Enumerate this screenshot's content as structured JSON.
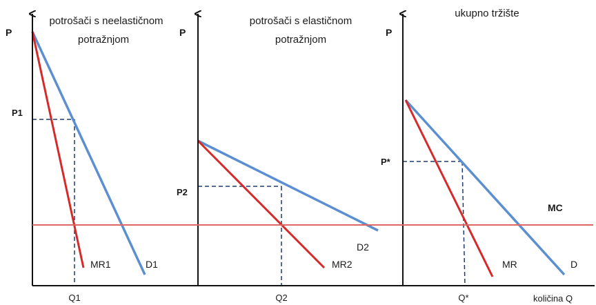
{
  "panels": [
    {
      "title_line1": "potrošači s neelastičnom",
      "title_line2": "potražnjom",
      "axis_p": "P",
      "price_label": "P1",
      "quantity_label": "Q1",
      "demand_label": "D1",
      "mr_label": "MR1"
    },
    {
      "title_line1": "potrošači s elastičnom",
      "title_line2": "potražnjom",
      "axis_p": "P",
      "price_label": "P2",
      "quantity_label": "Q2",
      "demand_label": "D2",
      "mr_label": "MR2"
    },
    {
      "title_line1": "ukupno tržište",
      "axis_p": "P",
      "price_label": "P*",
      "quantity_label": "Q*",
      "demand_label": "D",
      "mr_label": "MR",
      "x_axis_label": "količina Q"
    }
  ],
  "mc_label": "MC",
  "colors": {
    "demand": "#5b8fd1",
    "marginal_revenue": "#d62a2a",
    "marginal_cost": "#e06666",
    "axes": "#111111",
    "guides": "#1f3a6e"
  }
}
